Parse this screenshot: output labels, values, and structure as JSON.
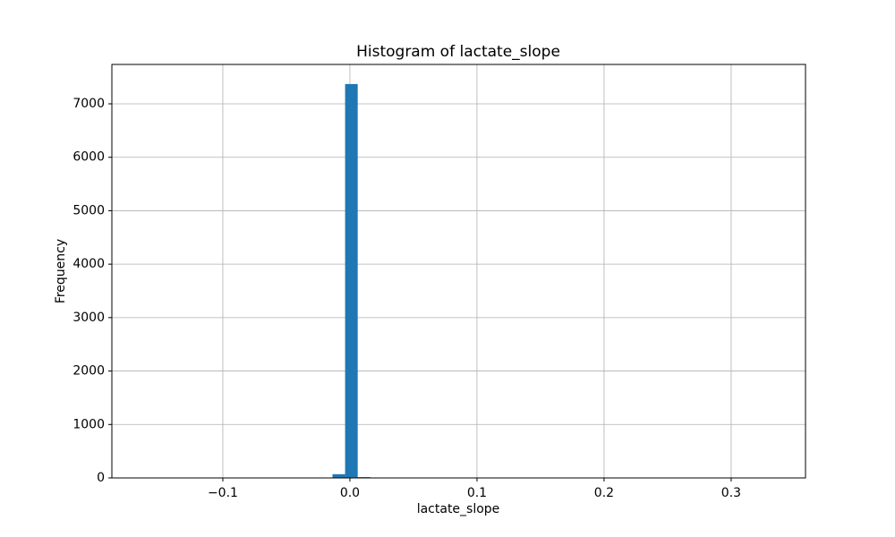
{
  "chart_data": {
    "type": "histogram",
    "title": "Histogram of lactate_slope",
    "xlabel": "lactate_slope",
    "ylabel": "Frequency",
    "bins": [
      -0.1625,
      -0.15258,
      -0.14266,
      -0.13274,
      -0.12282,
      -0.1129,
      -0.10298,
      -0.09306,
      -0.08314,
      -0.07322,
      -0.0633,
      -0.05338,
      -0.04346,
      -0.03354,
      -0.02362,
      -0.0137,
      -0.00378,
      0.00614,
      0.01606,
      0.02598,
      0.0359,
      0.04582,
      0.05574,
      0.06566,
      0.07558,
      0.0855,
      0.09542,
      0.10534,
      0.11526,
      0.12518,
      0.1351,
      0.14502,
      0.15494,
      0.16486,
      0.17478,
      0.1847,
      0.19462,
      0.20454,
      0.21446,
      0.22438,
      0.2343,
      0.24422,
      0.25414,
      0.26406,
      0.27398,
      0.2839,
      0.29382,
      0.30374,
      0.31366,
      0.32358,
      0.3335
    ],
    "counts": [
      1,
      0,
      0,
      0,
      0,
      0,
      0,
      0,
      0,
      0,
      0,
      0,
      0,
      0,
      0,
      70,
      7370,
      15,
      0,
      0,
      0,
      0,
      0,
      0,
      0,
      0,
      0,
      0,
      0,
      0,
      0,
      0,
      0,
      0,
      0,
      0,
      0,
      0,
      0,
      0,
      0,
      0,
      0,
      0,
      0,
      0,
      0,
      0,
      0,
      1
    ],
    "color": "#1f77b4",
    "xlim": [
      -0.1873,
      0.3585
    ],
    "xticks": [
      {
        "value": -0.1,
        "label": "−0.1"
      },
      {
        "value": 0,
        "label": "0.0"
      },
      0.1,
      0.2,
      0.3
    ],
    "ylim": [
      0,
      7737
    ],
    "yticks": [
      0,
      1000,
      2000,
      3000,
      4000,
      5000,
      6000,
      7000
    ],
    "grid": true
  }
}
